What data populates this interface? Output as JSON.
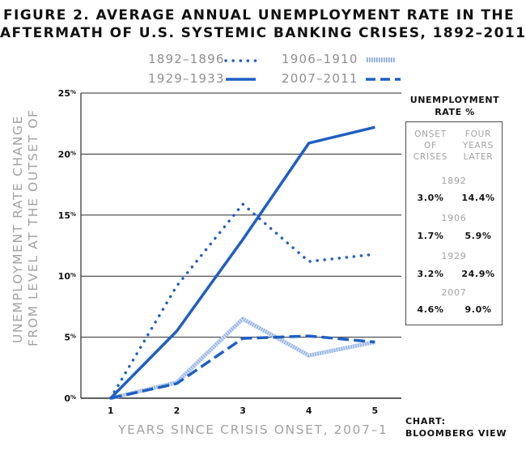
{
  "title_lines": [
    "FIGURE 2. AVERAGE ANNUAL UNEMPLOYMENT RATE IN THE",
    "AFTERMATH OF U.S. SYSTEMIC BANKING CRISES, 1892–2011"
  ],
  "ylabel_lines": [
    "UNEMPLOYMENT RATE CHANGE",
    "FROM LEVEL AT THE OUTSET OF"
  ],
  "xlabel": "YEARS SINCE CRISIS ONSET, 2007–1",
  "credit": {
    "line1": "CHART:",
    "line2": "BLOOMBERG VIEW"
  },
  "colors": {
    "primary": "#1f5fc4",
    "light": "#9cb8e6",
    "grid": "#2a2a2a",
    "muted": "#a2a2a2"
  },
  "chart_data": {
    "type": "line",
    "x": [
      1,
      2,
      3,
      4,
      5
    ],
    "xlim": [
      0.55,
      5.4
    ],
    "ylim": [
      0,
      25
    ],
    "yticks": [
      0,
      5,
      10,
      15,
      20,
      25
    ],
    "ytick_labels": [
      "0%",
      "5%",
      "10%",
      "15%",
      "20%",
      "25%"
    ],
    "xtick_labels": [
      "1",
      "2",
      "3",
      "4",
      "5"
    ],
    "grid": true,
    "legend_position": "top",
    "series": [
      {
        "name": "1892–1896",
        "style": "dotted",
        "values": [
          0,
          9.2,
          15.9,
          11.2,
          11.8
        ]
      },
      {
        "name": "1906–1910",
        "style": "hatched",
        "values": [
          0,
          1.3,
          6.5,
          3.5,
          4.6
        ]
      },
      {
        "name": "1929–1933",
        "style": "solid",
        "values": [
          0,
          5.5,
          13.0,
          20.9,
          22.2
        ]
      },
      {
        "name": "2007–2011",
        "style": "dashed",
        "values": [
          0,
          1.2,
          4.9,
          5.1,
          4.6
        ]
      }
    ]
  },
  "side_table": {
    "title_line1": "UNEMPLOYMENT",
    "title_line2": "RATE %",
    "col1_header": [
      "ONSET",
      "OF",
      "CRISES"
    ],
    "col2_header": [
      "FOUR",
      "YEARS",
      "LATER"
    ],
    "rows": [
      {
        "year": "1892",
        "onset": "3.0%",
        "later": "14.4%"
      },
      {
        "year": "1906",
        "onset": "1.7%",
        "later": "5.9%"
      },
      {
        "year": "1929",
        "onset": "3.2%",
        "later": "24.9%"
      },
      {
        "year": "2007",
        "onset": "4.6%",
        "later": "9.0%"
      }
    ]
  }
}
